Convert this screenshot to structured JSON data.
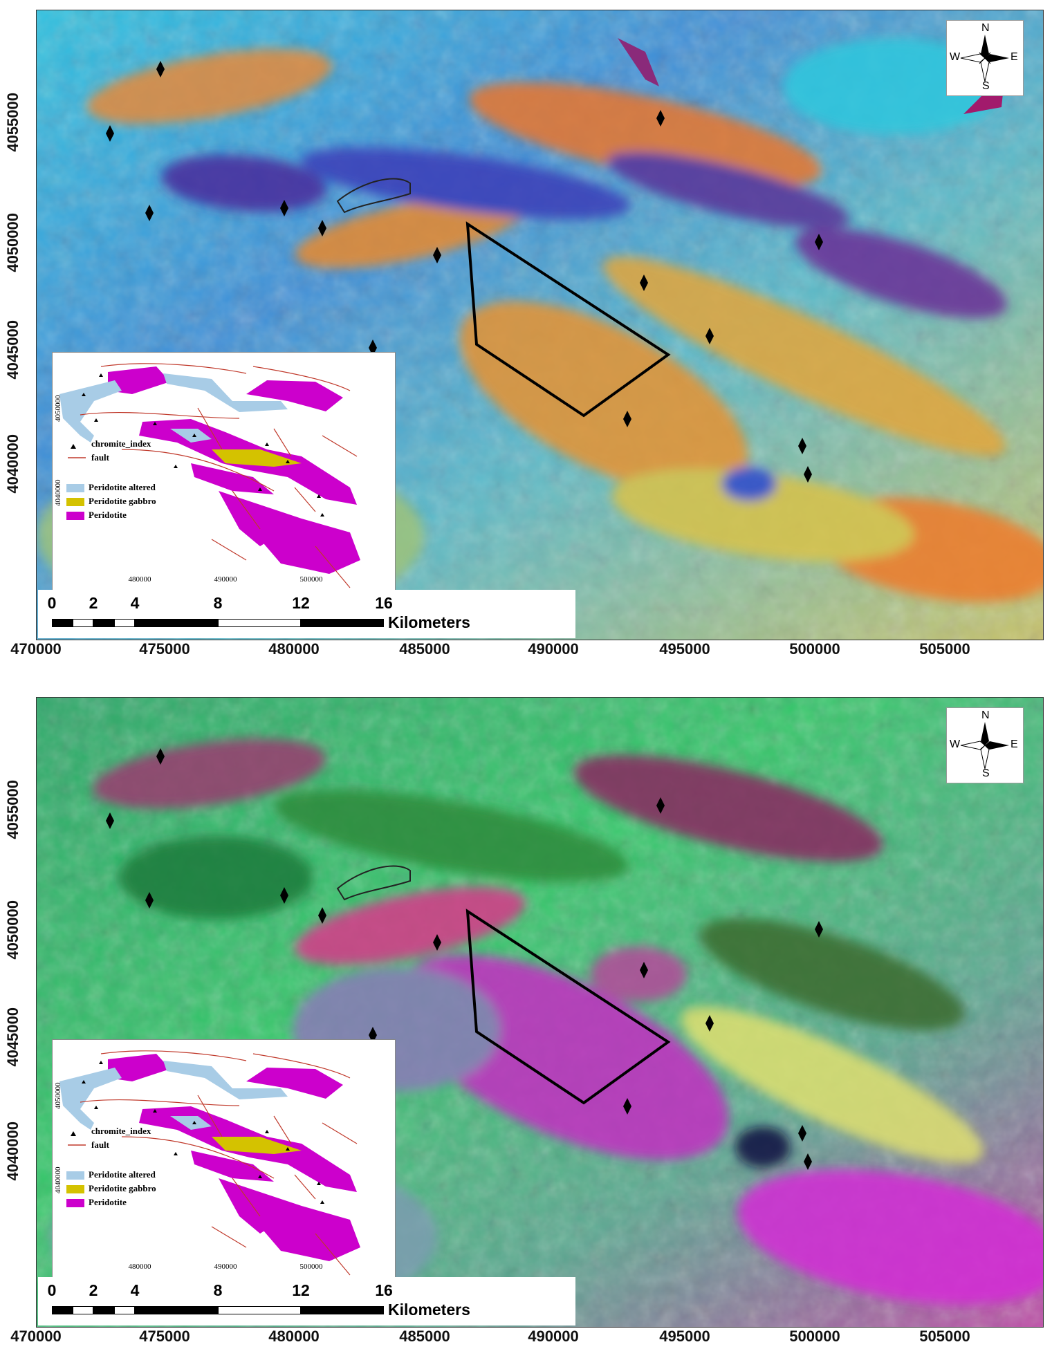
{
  "panels": [
    {
      "id": "top",
      "y_ticks": [
        "4055000",
        "4050000",
        "4045000",
        "4040000"
      ],
      "x_ticks": [
        "470000",
        "475000",
        "480000",
        "485000",
        "490000",
        "495000",
        "500000",
        "505000"
      ],
      "compass": {
        "n": "N",
        "s": "S",
        "e": "E",
        "w": "W"
      },
      "scale": {
        "labels": [
          "0",
          "2",
          "4",
          "8",
          "12",
          "16"
        ],
        "unit": "Kilometers"
      },
      "inset": {
        "legend": {
          "chromite": "chromite_index",
          "fault": "fault",
          "altered": "Peridotite altered",
          "gabbro": "Peridotite gabbro",
          "peridotite": "Peridotite"
        },
        "x_ticks": [
          "480000",
          "490000",
          "500000"
        ],
        "y_ticks": [
          "4050000",
          "4040000"
        ]
      }
    },
    {
      "id": "bottom",
      "y_ticks": [
        "4055000",
        "4050000",
        "4045000",
        "4040000"
      ],
      "x_ticks": [
        "470000",
        "475000",
        "480000",
        "485000",
        "490000",
        "495000",
        "500000",
        "505000"
      ],
      "compass": {
        "n": "N",
        "s": "S",
        "e": "E",
        "w": "W"
      },
      "scale": {
        "labels": [
          "0",
          "2",
          "4",
          "8",
          "12",
          "16"
        ],
        "unit": "Kilometers"
      },
      "inset": {
        "legend": {
          "chromite": "chromite_index",
          "fault": "fault",
          "altered": "Peridotite altered",
          "gabbro": "Peridotite gabbro",
          "peridotite": "Peridotite"
        },
        "x_ticks": [
          "480000",
          "490000",
          "500000"
        ],
        "y_ticks": [
          "4050000",
          "4040000"
        ]
      }
    }
  ],
  "colors": {
    "peridotite": "#cc00cc",
    "altered": "#a8cce6",
    "gabbro": "#d4c200",
    "fault": "#c0392b"
  },
  "icons": [
    "north-arrow-icon",
    "chromite-occurrence-marker-icon",
    "study-area-polygon"
  ]
}
